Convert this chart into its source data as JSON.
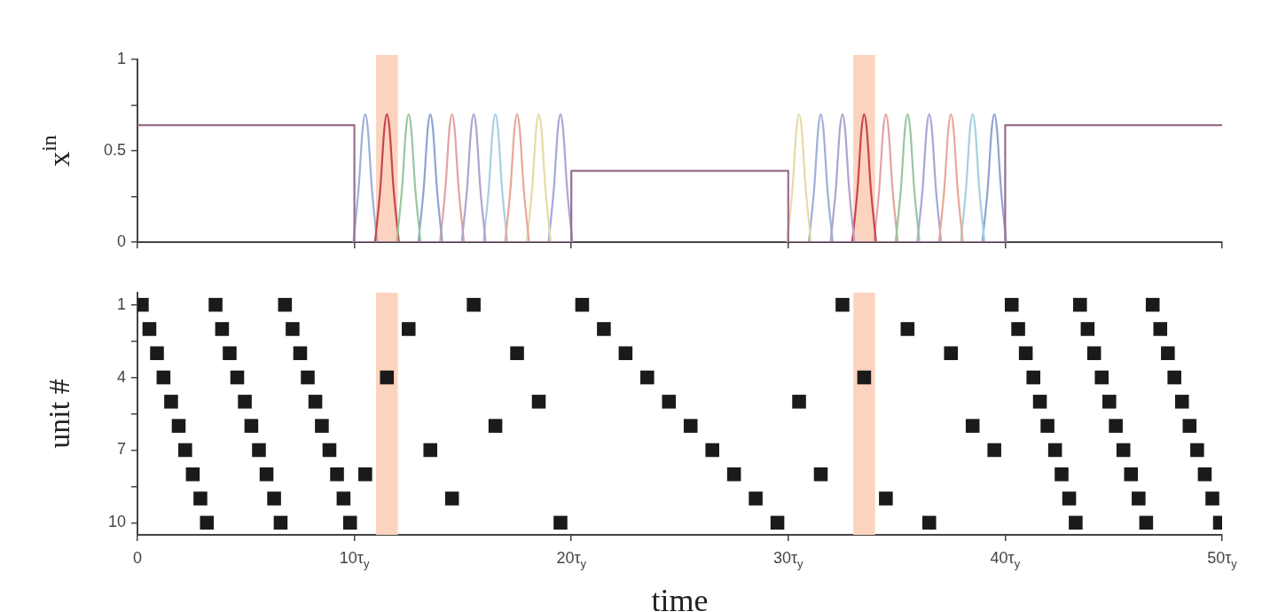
{
  "chart_data": [
    {
      "type": "line",
      "ylabel": "x$^{in}$",
      "xlim": [
        0,
        50
      ],
      "xticks": [
        0,
        10,
        20,
        30,
        40,
        50
      ],
      "ylim": [
        0,
        1
      ],
      "yticks": [
        0,
        {
          "value": 0.25,
          "label": null
        },
        0.5,
        {
          "value": 0.75,
          "label": null
        },
        1
      ],
      "tick_labels": "y",
      "grid": false,
      "legend": false,
      "marker": "none",
      "line_style": "solid",
      "bands": [
        {
          "axis": "x",
          "from": 11,
          "to": 12,
          "color": "#fcd3bf"
        },
        {
          "axis": "x",
          "from": 33,
          "to": 34,
          "color": "#fcd3bf"
        }
      ],
      "series": [
        {
          "color": "#9a6d8c",
          "x": [
            0,
            10,
            10,
            20,
            20,
            30,
            30,
            40,
            40,
            50
          ],
          "values": [
            0.64,
            0.64,
            0,
            0,
            0.39,
            0.39,
            0,
            0,
            0.64,
            0.64
          ]
        },
        {
          "color": "#b1a2cf",
          "x": [
            14.95,
            15.2,
            15.38,
            15.5,
            15.62,
            15.8,
            16.05,
            25,
            31.95,
            32.2,
            32.38,
            32.5,
            32.62,
            32.8,
            33.05
          ],
          "values": [
            0,
            0.3,
            0.62,
            0.7,
            0.62,
            0.3,
            0,
            null,
            0,
            0.3,
            0.62,
            0.7,
            0.62,
            0.3,
            0
          ]
        },
        {
          "color": "#97c7a0",
          "x": [
            11.95,
            12.2,
            12.38,
            12.5,
            12.62,
            12.8,
            13.05,
            25,
            34.95,
            35.2,
            35.38,
            35.5,
            35.62,
            35.8,
            36.05
          ],
          "values": [
            0,
            0.3,
            0.62,
            0.7,
            0.62,
            0.3,
            0,
            null,
            0,
            0.3,
            0.62,
            0.7,
            0.62,
            0.3,
            0
          ]
        },
        {
          "color": "#e8a897",
          "x": [
            16.95,
            17.2,
            17.38,
            17.5,
            17.62,
            17.8,
            18.05,
            25,
            36.95,
            37.2,
            37.38,
            37.5,
            37.62,
            37.8,
            38.05
          ],
          "values": [
            0,
            0.3,
            0.62,
            0.7,
            0.62,
            0.3,
            0,
            null,
            0,
            0.3,
            0.62,
            0.7,
            0.62,
            0.3,
            0
          ]
        },
        {
          "color": "#c8464e",
          "x": [
            10.95,
            11.2,
            11.38,
            11.5,
            11.62,
            11.8,
            12.05,
            25,
            32.95,
            33.2,
            33.38,
            33.5,
            33.62,
            33.8,
            34.05
          ],
          "values": [
            0,
            0.3,
            0.62,
            0.7,
            0.62,
            0.3,
            0,
            null,
            0,
            0.3,
            0.62,
            0.7,
            0.62,
            0.3,
            0
          ]
        },
        {
          "color": "#e6dba6",
          "x": [
            17.95,
            18.2,
            18.38,
            18.5,
            18.62,
            18.8,
            19.05,
            25,
            29.95,
            30.2,
            30.38,
            30.5,
            30.62,
            30.8,
            31.05
          ],
          "values": [
            0,
            0.3,
            0.62,
            0.7,
            0.62,
            0.3,
            0,
            null,
            0,
            0.3,
            0.62,
            0.7,
            0.62,
            0.3,
            0
          ]
        },
        {
          "color": "#a5d0e0",
          "x": [
            15.95,
            16.2,
            16.38,
            16.5,
            16.62,
            16.8,
            17.05,
            25,
            37.95,
            38.2,
            38.38,
            38.5,
            38.62,
            38.8,
            39.05
          ],
          "values": [
            0,
            0.3,
            0.62,
            0.7,
            0.62,
            0.3,
            0,
            null,
            0,
            0.3,
            0.62,
            0.7,
            0.62,
            0.3,
            0
          ]
        },
        {
          "color": "#8fa3d3",
          "x": [
            12.95,
            13.2,
            13.38,
            13.5,
            13.62,
            13.8,
            14.05,
            25,
            38.95,
            39.2,
            39.38,
            39.5,
            39.62,
            39.8,
            40.05
          ],
          "values": [
            0,
            0.3,
            0.62,
            0.7,
            0.62,
            0.3,
            0,
            null,
            0,
            0.3,
            0.62,
            0.7,
            0.62,
            0.3,
            0
          ]
        },
        {
          "color": "#9fb0d8",
          "x": [
            9.95,
            10.2,
            10.38,
            10.5,
            10.62,
            10.8,
            11.05,
            25,
            30.95,
            31.2,
            31.38,
            31.5,
            31.62,
            31.8,
            32.05
          ],
          "values": [
            0,
            0.3,
            0.62,
            0.7,
            0.62,
            0.3,
            0,
            null,
            0,
            0.3,
            0.62,
            0.7,
            0.62,
            0.3,
            0
          ]
        },
        {
          "color": "#e3a3a3",
          "x": [
            13.95,
            14.2,
            14.38,
            14.5,
            14.62,
            14.8,
            15.05,
            25,
            33.95,
            34.2,
            34.38,
            34.5,
            34.62,
            34.8,
            35.05
          ],
          "values": [
            0,
            0.3,
            0.62,
            0.7,
            0.62,
            0.3,
            0,
            null,
            0,
            0.3,
            0.62,
            0.7,
            0.62,
            0.3,
            0
          ]
        },
        {
          "color": "#a7a7d9",
          "x": [
            18.95,
            19.2,
            19.38,
            19.5,
            19.62,
            19.8,
            20.05,
            25,
            35.95,
            36.2,
            36.38,
            36.5,
            36.62,
            36.8,
            37.05
          ],
          "values": [
            0,
            0.3,
            0.62,
            0.7,
            0.62,
            0.3,
            0,
            null,
            0,
            0.3,
            0.62,
            0.7,
            0.62,
            0.3,
            0
          ]
        }
      ]
    },
    {
      "type": "scatter",
      "xlabel": "time",
      "ylabel": "unit #",
      "xlim": [
        0,
        50
      ],
      "xticks": [
        0,
        {
          "value": 10,
          "label": "10τ$_{y}$"
        },
        {
          "value": 20,
          "label": "20τ$_{y}$"
        },
        {
          "value": 30,
          "label": "30τ$_{y}$"
        },
        {
          "value": 40,
          "label": "40τ$_{y}$"
        },
        {
          "value": 50,
          "label": "50τ$_{y}$"
        }
      ],
      "ylim": [
        10.5,
        0.5
      ],
      "yticks": [
        1,
        {
          "value": 2.5,
          "label": null
        },
        4,
        {
          "value": 5.5,
          "label": null
        },
        7,
        {
          "value": 8.5,
          "label": null
        },
        10
      ],
      "grid": false,
      "legend": false,
      "marker": "square",
      "bands": [
        {
          "axis": "x",
          "from": 11,
          "to": 12,
          "color": "#fcd3bf"
        },
        {
          "axis": "x",
          "from": 33,
          "to": 34,
          "color": "#fcd3bf"
        }
      ],
      "series": [
        {
          "color": "#1a1a1a",
          "x": [
            0.2,
            0.55,
            0.9,
            1.2,
            1.55,
            1.9,
            2.2,
            2.55,
            2.9,
            3.2,
            3.6,
            3.9,
            4.25,
            4.6,
            4.95,
            5.25,
            5.6,
            5.95,
            6.3,
            6.6,
            6.8,
            7.15,
            7.5,
            7.85,
            8.2,
            8.5,
            8.85,
            9.2,
            9.5,
            9.8,
            15.5,
            12.5,
            17.5,
            11.5,
            18.5,
            16.5,
            13.5,
            10.5,
            14.5,
            19.5,
            20.5,
            21.5,
            22.5,
            23.5,
            24.5,
            25.5,
            26.5,
            27.5,
            28.5,
            29.5,
            32.5,
            35.5,
            37.5,
            33.5,
            30.5,
            38.5,
            39.5,
            31.5,
            34.5,
            36.5,
            40.3,
            40.6,
            40.95,
            41.3,
            41.6,
            41.95,
            42.3,
            42.6,
            42.95,
            43.25,
            43.45,
            43.8,
            44.1,
            44.45,
            44.8,
            45.1,
            45.45,
            45.8,
            46.15,
            46.5,
            46.8,
            47.15,
            47.5,
            47.8,
            48.15,
            48.5,
            48.85,
            49.2,
            49.55,
            49.9
          ],
          "values": [
            1,
            2,
            3,
            4,
            5,
            6,
            7,
            8,
            9,
            10,
            1,
            2,
            3,
            4,
            5,
            6,
            7,
            8,
            9,
            10,
            1,
            2,
            3,
            4,
            5,
            6,
            7,
            8,
            9,
            10,
            1,
            2,
            3,
            4,
            5,
            6,
            7,
            8,
            9,
            10,
            1,
            2,
            3,
            4,
            5,
            6,
            7,
            8,
            9,
            10,
            1,
            2,
            3,
            4,
            5,
            6,
            7,
            8,
            9,
            10,
            1,
            2,
            3,
            4,
            5,
            6,
            7,
            8,
            9,
            10,
            1,
            2,
            3,
            4,
            5,
            6,
            7,
            8,
            9,
            10,
            1,
            2,
            3,
            4,
            5,
            6,
            7,
            8,
            9,
            10
          ]
        }
      ]
    }
  ]
}
